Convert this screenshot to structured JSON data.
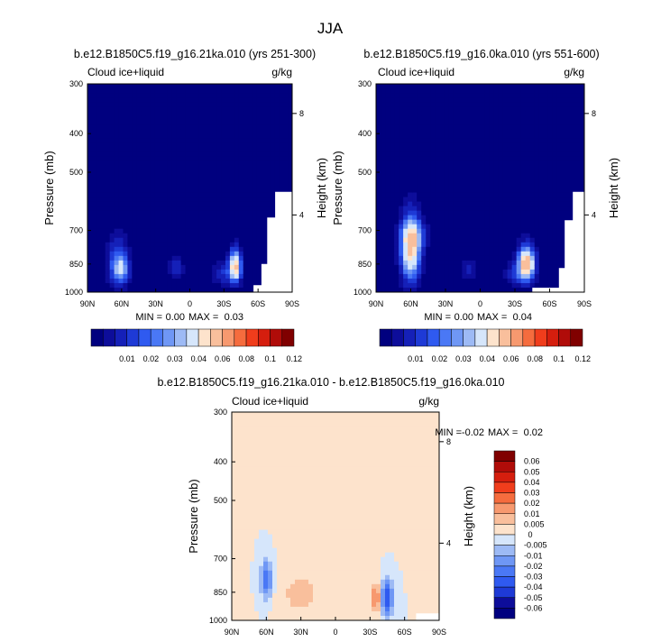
{
  "figure": {
    "title": "JJA"
  },
  "chart_data": [
    {
      "type": "heatmap",
      "id": "left",
      "title": "b.e12.B1850C5.f19_g16.21ka.010 (yrs 251-300)",
      "field_label": "Cloud ice+liquid",
      "units": "g/kg",
      "ylabel": "Pressure (mb)",
      "ylabel_right": "Height (km)",
      "x_ticks": [
        "90N",
        "60N",
        "30N",
        "0",
        "30S",
        "60S",
        "90S"
      ],
      "x_values": [
        90,
        60,
        30,
        0,
        -30,
        -60,
        -90
      ],
      "y_ticks": [
        300,
        400,
        500,
        700,
        850,
        1000
      ],
      "right_ticks": [
        "8",
        "4"
      ],
      "min_label": "MIN =",
      "min": "0.00",
      "max_label": "MAX =",
      "max": "0.03",
      "blobs": [
        {
          "lat": 63,
          "p": 850,
          "amp": 0.013,
          "wlat": 9,
          "wp": 110
        },
        {
          "lat": 60,
          "p": 880,
          "amp": 0.011,
          "wlat": 6,
          "wp": 60
        },
        {
          "lat": -40,
          "p": 860,
          "amp": 0.03,
          "wlat": 5,
          "wp": 75
        },
        {
          "lat": -30,
          "p": 900,
          "amp": 0.007,
          "wlat": 10,
          "wp": 60
        },
        {
          "lat": 12,
          "p": 870,
          "amp": 0.007,
          "wlat": 6,
          "wp": 50
        }
      ],
      "blank_region": [
        [
          -56,
          1000
        ],
        [
          -56,
          960
        ],
        [
          -63,
          960
        ],
        [
          -63,
          850
        ],
        [
          -68,
          850
        ],
        [
          -68,
          650
        ],
        [
          -75,
          650
        ],
        [
          -75,
          560
        ],
        [
          -90,
          560
        ],
        [
          -90,
          1000
        ]
      ]
    },
    {
      "type": "heatmap",
      "id": "right",
      "title": "b.e12.B1850C5.f19_g16.0ka.010 (yrs 551-600)",
      "field_label": "Cloud ice+liquid",
      "units": "g/kg",
      "ylabel": "Pressure (mb)",
      "ylabel_right": "Height (km)",
      "x_ticks": [
        "90N",
        "60N",
        "30N",
        "0",
        "30S",
        "60S",
        "90S"
      ],
      "x_values": [
        90,
        60,
        30,
        0,
        -30,
        -60,
        -90
      ],
      "y_ticks": [
        300,
        400,
        500,
        700,
        850,
        1000
      ],
      "right_ticks": [
        "8",
        "4"
      ],
      "min_label": "MIN =",
      "min": "0.00",
      "max_label": "MAX =",
      "max": "0.04",
      "blobs": [
        {
          "lat": 60,
          "p": 790,
          "amp": 0.028,
          "wlat": 8,
          "wp": 140
        },
        {
          "lat": 58,
          "p": 720,
          "amp": 0.012,
          "wlat": 10,
          "wp": 60
        },
        {
          "lat": -40,
          "p": 850,
          "amp": 0.034,
          "wlat": 7,
          "wp": 80
        },
        {
          "lat": -30,
          "p": 900,
          "amp": 0.006,
          "wlat": 9,
          "wp": 60
        },
        {
          "lat": 10,
          "p": 880,
          "amp": 0.006,
          "wlat": 6,
          "wp": 50
        }
      ],
      "blank_region": [
        [
          -45,
          1000
        ],
        [
          -45,
          975
        ],
        [
          -68,
          975
        ],
        [
          -68,
          870
        ],
        [
          -73,
          870
        ],
        [
          -73,
          660
        ],
        [
          -80,
          660
        ],
        [
          -80,
          560
        ],
        [
          -90,
          560
        ],
        [
          -90,
          1000
        ]
      ]
    },
    {
      "type": "heatmap",
      "id": "diff",
      "title": "b.e12.B1850C5.f19_g16.21ka.010 - b.e12.B1850C5.f19_g16.0ka.010",
      "field_label": "Cloud ice+liquid",
      "units": "g/kg",
      "ylabel": "Pressure (mb)",
      "ylabel_right": "Height (km)",
      "x_ticks": [
        "90N",
        "60N",
        "30N",
        "0",
        "30S",
        "60S",
        "90S"
      ],
      "x_values": [
        90,
        60,
        30,
        0,
        -30,
        -60,
        -90
      ],
      "y_ticks": [
        300,
        400,
        500,
        700,
        850,
        1000
      ],
      "right_ticks": [
        "8",
        "4"
      ],
      "min_label": "MIN =",
      "min": "-0.02",
      "max_label": "MAX =",
      "max": "0.02",
      "blobs": [
        {
          "lat": 60,
          "p": 790,
          "amp": -0.016,
          "wlat": 5,
          "wp": 90
        },
        {
          "lat": -45,
          "p": 880,
          "amp": -0.02,
          "wlat": 5,
          "wp": 90
        },
        {
          "lat": -35,
          "p": 880,
          "amp": 0.014,
          "wlat": 4,
          "wp": 70
        },
        {
          "lat": 30,
          "p": 860,
          "amp": 0.006,
          "wlat": 18,
          "wp": 110
        },
        {
          "lat": 5,
          "p": 560,
          "amp": 0.004,
          "wlat": 30,
          "wp": 160
        }
      ],
      "blank_region": [
        [
          -70,
          1000
        ],
        [
          -70,
          960
        ],
        [
          -90,
          960
        ],
        [
          -90,
          1000
        ]
      ]
    }
  ],
  "colorbars": {
    "positive": {
      "labels": [
        "0.01",
        "0.02",
        "0.03",
        "0.04",
        "0.06",
        "0.08",
        "0.1",
        "0.12"
      ],
      "levels": [
        0.0025,
        0.005,
        0.0075,
        0.01,
        0.0125,
        0.015,
        0.0175,
        0.02,
        0.025,
        0.03,
        0.035,
        0.04,
        0.05,
        0.06,
        0.07,
        0.08,
        0.09,
        0.1,
        0.11,
        0.12,
        0.13
      ]
    },
    "diff": {
      "labels": [
        "0.06",
        "0.05",
        "0.04",
        "0.03",
        "0.02",
        "0.01",
        "0.005",
        "0",
        "-0.005",
        "-0.01",
        "-0.02",
        "-0.03",
        "-0.04",
        "-0.05",
        "-0.06"
      ],
      "levels": [
        -0.06,
        -0.05,
        -0.04,
        -0.03,
        -0.02,
        -0.01,
        -0.005,
        0,
        0.005,
        0.01,
        0.02,
        0.03,
        0.04,
        0.05,
        0.06
      ]
    },
    "colors": [
      "#00007f",
      "#0d0d9a",
      "#1520b8",
      "#1e3ad6",
      "#2f5af0",
      "#4a78f5",
      "#6f97f5",
      "#9dbaf5",
      "#d6e6fb",
      "#fde3cc",
      "#f9bf9c",
      "#f7996f",
      "#f56c3e",
      "#f03d1c",
      "#d51e0e",
      "#b00c09",
      "#800000"
    ]
  }
}
